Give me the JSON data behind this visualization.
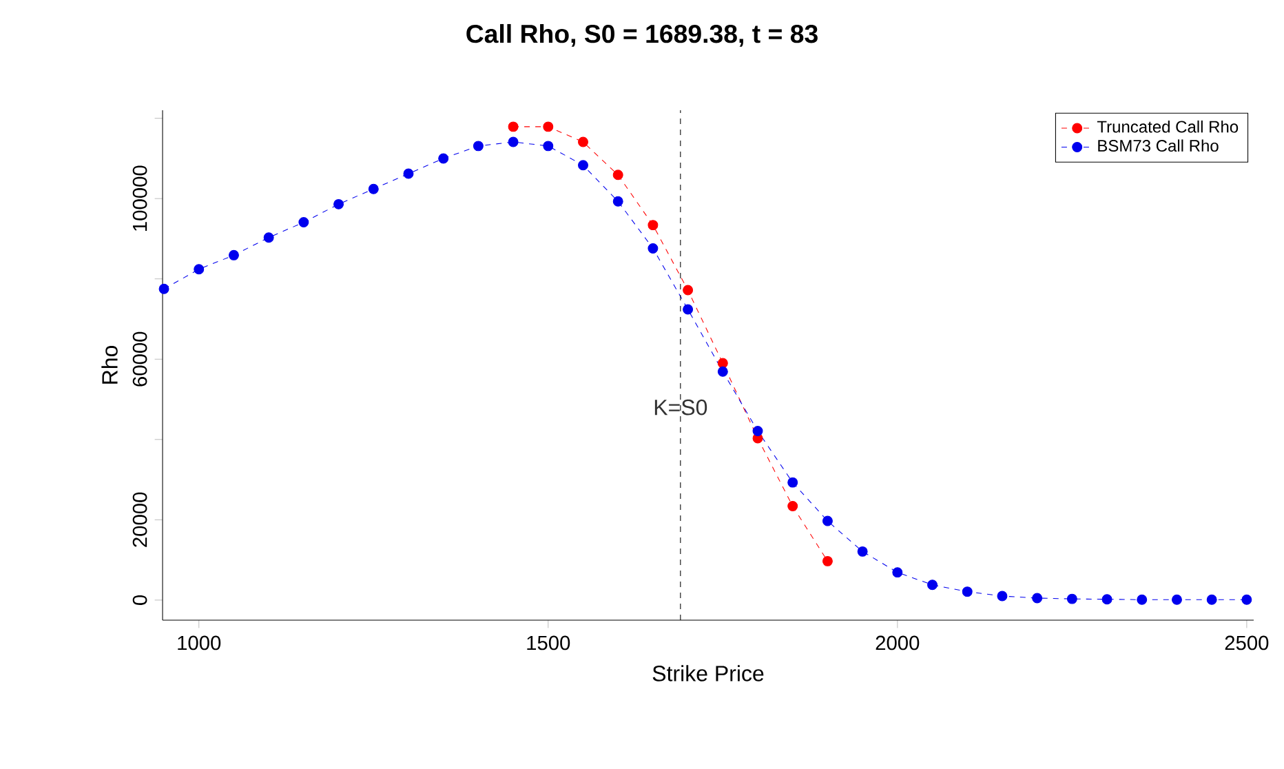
{
  "chart_data": {
    "type": "line",
    "title": "Call Rho, S0 = 1689.38, t = 83",
    "xlabel": "Strike Price",
    "ylabel": "Rho",
    "xlim": [
      948,
      2510
    ],
    "xticks": [
      1000,
      1500,
      2000,
      2500
    ],
    "ylim": [
      -5000,
      122000
    ],
    "yticks": [
      0,
      20000,
      {
        "value": 40000,
        "label": null
      },
      60000,
      {
        "value": 80000,
        "label": null
      },
      100000,
      {
        "value": 120000,
        "label": null
      }
    ],
    "marker": "circle",
    "legend": "top right",
    "grid": false,
    "series": [
      {
        "name": "Truncated Call Rho",
        "color": "#ff0000",
        "line_style": "dashed",
        "x": [
          1450,
          1500,
          1550,
          1600,
          1650,
          1700,
          1750,
          1800,
          1850,
          1900
        ],
        "values": [
          117900,
          117900,
          114100,
          105900,
          93400,
          77200,
          59000,
          40300,
          23400,
          9700
        ]
      },
      {
        "name": "BSM73 Call Rho",
        "color": "#0000ee",
        "line_style": "dashed",
        "x": [
          950,
          1000,
          1050,
          1100,
          1150,
          1200,
          1250,
          1300,
          1350,
          1400,
          1450,
          1500,
          1550,
          1600,
          1650,
          1700,
          1750,
          1800,
          1850,
          1900,
          1950,
          2000,
          2050,
          2100,
          2150,
          2200,
          2250,
          2300,
          2350,
          2400,
          2450,
          2500
        ],
        "values": [
          77500,
          82400,
          85900,
          90300,
          94100,
          98600,
          102400,
          106200,
          110000,
          113100,
          114100,
          113100,
          108300,
          99300,
          87600,
          72400,
          56900,
          42100,
          29300,
          19700,
          12100,
          6900,
          3800,
          2100,
          1000,
          500,
          300,
          200,
          100,
          100,
          100,
          100
        ]
      }
    ],
    "ref_lines": [
      {
        "axis": "x",
        "value": 1689.38,
        "color": "#000000",
        "line_style": "dashed"
      }
    ],
    "annotations": [
      {
        "text": "K=S0",
        "x": 1689.38,
        "y": 48000
      }
    ]
  }
}
